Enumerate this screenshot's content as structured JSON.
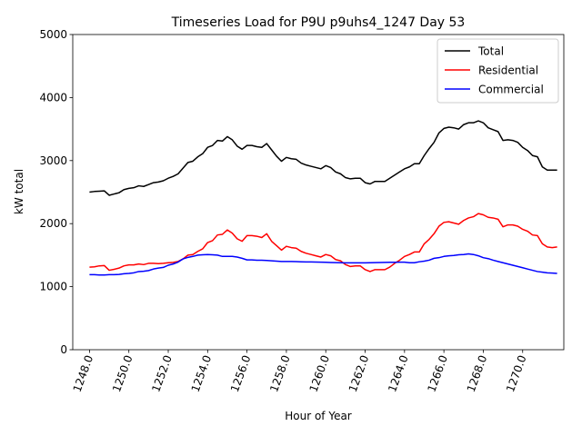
{
  "chart_data": {
    "type": "line",
    "title": "Timeseries Load for P9U p9uhs4_1247  Day 53",
    "xlabel": "Hour of Year",
    "ylabel": "kW total",
    "xlim": [
      1247.15,
      1272.09
    ],
    "ylim": [
      0,
      5000
    ],
    "xticks": [
      1248,
      1250,
      1252,
      1254,
      1256,
      1258,
      1260,
      1262,
      1264,
      1266,
      1268,
      1270
    ],
    "xtick_labels": [
      "1248.0",
      "1250.0",
      "1252.0",
      "1254.0",
      "1256.0",
      "1258.0",
      "1260.0",
      "1262.0",
      "1264.0",
      "1266.0",
      "1268.0",
      "1270.0"
    ],
    "yticks": [
      0,
      1000,
      2000,
      3000,
      4000,
      5000
    ],
    "ytick_labels": [
      "0",
      "1000",
      "2000",
      "3000",
      "4000",
      "5000"
    ],
    "grid": false,
    "legend_position": "upper-right",
    "x": [
      1248.0,
      1248.25,
      1248.5,
      1248.75,
      1249.0,
      1249.25,
      1249.5,
      1249.75,
      1250.0,
      1250.25,
      1250.5,
      1250.75,
      1251.0,
      1251.25,
      1251.5,
      1251.75,
      1252.0,
      1252.25,
      1252.5,
      1252.75,
      1253.0,
      1253.25,
      1253.5,
      1253.75,
      1254.0,
      1254.25,
      1254.5,
      1254.75,
      1255.0,
      1255.25,
      1255.5,
      1255.75,
      1256.0,
      1256.25,
      1256.5,
      1256.75,
      1257.0,
      1257.25,
      1257.5,
      1257.75,
      1258.0,
      1258.25,
      1258.5,
      1258.75,
      1259.0,
      1259.25,
      1259.5,
      1259.75,
      1260.0,
      1260.25,
      1260.5,
      1260.75,
      1261.0,
      1261.25,
      1261.5,
      1261.75,
      1262.0,
      1262.25,
      1262.5,
      1262.75,
      1263.0,
      1263.25,
      1263.5,
      1263.75,
      1264.0,
      1264.25,
      1264.5,
      1264.75,
      1265.0,
      1265.25,
      1265.5,
      1265.75,
      1266.0,
      1266.25,
      1266.5,
      1266.75,
      1267.0,
      1267.25,
      1267.5,
      1267.75,
      1268.0,
      1268.25,
      1268.5,
      1268.75,
      1269.0,
      1269.25,
      1269.5,
      1269.75,
      1270.0,
      1270.25,
      1270.5,
      1270.75,
      1271.0,
      1271.25,
      1271.5,
      1271.75
    ],
    "series": [
      {
        "name": "Total",
        "color": "#000000",
        "values": [
          2500,
          2510,
          2515,
          2520,
          2450,
          2470,
          2490,
          2540,
          2560,
          2570,
          2600,
          2590,
          2620,
          2650,
          2660,
          2680,
          2720,
          2750,
          2790,
          2880,
          2970,
          2990,
          3060,
          3110,
          3210,
          3240,
          3320,
          3310,
          3380,
          3330,
          3230,
          3180,
          3240,
          3240,
          3220,
          3210,
          3270,
          3170,
          3070,
          2990,
          3050,
          3030,
          3020,
          2960,
          2930,
          2910,
          2890,
          2870,
          2920,
          2890,
          2820,
          2790,
          2730,
          2710,
          2720,
          2720,
          2650,
          2630,
          2670,
          2670,
          2670,
          2720,
          2770,
          2820,
          2870,
          2900,
          2950,
          2950,
          3080,
          3190,
          3290,
          3440,
          3510,
          3530,
          3520,
          3500,
          3570,
          3600,
          3600,
          3630,
          3600,
          3520,
          3490,
          3460,
          3320,
          3330,
          3320,
          3290,
          3210,
          3160,
          3080,
          3060,
          2900,
          2850,
          2850,
          2850
        ]
      },
      {
        "name": "Residential",
        "color": "#ff0000",
        "values": [
          1310,
          1315,
          1330,
          1335,
          1260,
          1275,
          1295,
          1330,
          1345,
          1345,
          1360,
          1350,
          1370,
          1370,
          1365,
          1370,
          1380,
          1385,
          1400,
          1440,
          1500,
          1510,
          1560,
          1600,
          1700,
          1730,
          1820,
          1830,
          1900,
          1850,
          1760,
          1720,
          1810,
          1810,
          1800,
          1780,
          1840,
          1720,
          1650,
          1580,
          1640,
          1620,
          1610,
          1560,
          1530,
          1510,
          1490,
          1470,
          1510,
          1490,
          1430,
          1410,
          1350,
          1320,
          1330,
          1330,
          1270,
          1240,
          1270,
          1270,
          1270,
          1310,
          1370,
          1420,
          1480,
          1510,
          1550,
          1550,
          1680,
          1750,
          1840,
          1960,
          2020,
          2030,
          2010,
          1990,
          2050,
          2090,
          2110,
          2160,
          2140,
          2100,
          2090,
          2070,
          1950,
          1980,
          1980,
          1960,
          1910,
          1880,
          1820,
          1810,
          1680,
          1630,
          1620,
          1630
        ]
      },
      {
        "name": "Commercial",
        "color": "#0000ff",
        "values": [
          1190,
          1190,
          1185,
          1185,
          1190,
          1190,
          1195,
          1205,
          1210,
          1220,
          1240,
          1245,
          1255,
          1280,
          1295,
          1305,
          1340,
          1360,
          1390,
          1440,
          1465,
          1480,
          1500,
          1505,
          1510,
          1505,
          1500,
          1480,
          1480,
          1480,
          1470,
          1450,
          1425,
          1425,
          1420,
          1420,
          1415,
          1410,
          1405,
          1400,
          1400,
          1400,
          1398,
          1395,
          1393,
          1392,
          1390,
          1388,
          1386,
          1384,
          1382,
          1380,
          1378,
          1378,
          1378,
          1378,
          1378,
          1380,
          1382,
          1384,
          1385,
          1386,
          1387,
          1388,
          1388,
          1380,
          1380,
          1395,
          1405,
          1420,
          1450,
          1460,
          1480,
          1490,
          1495,
          1505,
          1510,
          1520,
          1510,
          1490,
          1460,
          1445,
          1420,
          1400,
          1380,
          1360,
          1340,
          1320,
          1300,
          1280,
          1260,
          1240,
          1230,
          1220,
          1215,
          1210
        ]
      }
    ]
  }
}
